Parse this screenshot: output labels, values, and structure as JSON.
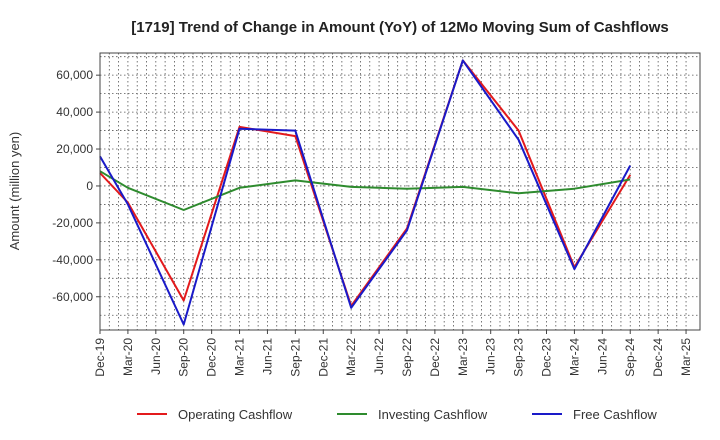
{
  "chart_data": {
    "type": "line",
    "title": "[1719]  Trend of Change in Amount (YoY) of 12Mo Moving Sum of Cashflows",
    "xlabel": "",
    "ylabel": "Amount (million yen)",
    "ylim": [
      -78000,
      72000
    ],
    "yticks": [
      -60000,
      -40000,
      -20000,
      0,
      20000,
      40000,
      60000
    ],
    "ytick_labels": [
      "-60,000",
      "-40,000",
      "-20,000",
      "0",
      "20,000",
      "40,000",
      "60,000"
    ],
    "categories": [
      "Dec-19",
      "Mar-20",
      "Jun-20",
      "Sep-20",
      "Dec-20",
      "Mar-21",
      "Jun-21",
      "Sep-21",
      "Dec-21",
      "Mar-22",
      "Jun-22",
      "Sep-22",
      "Dec-22",
      "Mar-23",
      "Jun-23",
      "Sep-23",
      "Dec-23",
      "Mar-24",
      "Jun-24",
      "Sep-24",
      "Dec-24",
      "Mar-25"
    ],
    "grid": true,
    "legend_position": "bottom",
    "series": [
      {
        "name": "Operating Cashflow",
        "color": "#e31a1c",
        "values": [
          7000,
          -9000,
          null,
          -62000,
          null,
          32000,
          null,
          27000,
          null,
          -65000,
          null,
          -23000,
          null,
          68000,
          null,
          30000,
          null,
          -44000,
          null,
          6000,
          null,
          null
        ]
      },
      {
        "name": "Investing Cashflow",
        "color": "#2e8b2e",
        "values": [
          8000,
          -1000,
          null,
          -13000,
          null,
          -1000,
          null,
          3000,
          null,
          -500,
          null,
          -1500,
          null,
          -500,
          null,
          -4000,
          null,
          -1500,
          null,
          3500,
          null,
          null
        ]
      },
      {
        "name": "Free Cashflow",
        "color": "#1a1ac8",
        "values": [
          16000,
          -10000,
          null,
          -75000,
          null,
          31000,
          null,
          30000,
          null,
          -66000,
          null,
          -24000,
          null,
          68000,
          null,
          25000,
          null,
          -45000,
          null,
          11000,
          null,
          null
        ]
      }
    ]
  }
}
